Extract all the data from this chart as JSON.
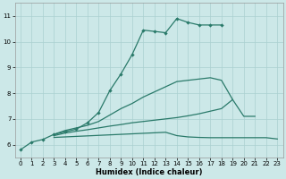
{
  "xlabel": "Humidex (Indice chaleur)",
  "bg_color": "#cce8e8",
  "line_color": "#2a7a6a",
  "grid_color": "#aad0d0",
  "xlim": [
    -0.5,
    23.5
  ],
  "ylim": [
    5.5,
    11.5
  ],
  "xticks": [
    0,
    1,
    2,
    3,
    4,
    5,
    6,
    7,
    8,
    9,
    10,
    11,
    12,
    13,
    14,
    15,
    16,
    17,
    18,
    19,
    20,
    21,
    22,
    23
  ],
  "yticks": [
    6,
    7,
    8,
    9,
    10,
    11
  ],
  "series": [
    {
      "x": [
        0,
        1,
        2,
        3,
        4,
        5,
        6,
        7,
        8,
        9,
        10,
        11,
        12,
        13,
        14,
        15,
        16,
        17,
        18
      ],
      "y": [
        5.8,
        6.1,
        6.2,
        6.4,
        6.5,
        6.6,
        6.85,
        7.25,
        8.1,
        8.75,
        9.5,
        10.45,
        10.4,
        10.35,
        10.9,
        10.75,
        10.65,
        10.65,
        10.65
      ],
      "marker": true
    },
    {
      "x": [
        3,
        4,
        5,
        6,
        7,
        8,
        9,
        10,
        11,
        12,
        13,
        14,
        15,
        16,
        17,
        18,
        19,
        20,
        21,
        22
      ],
      "y": [
        6.4,
        6.55,
        6.65,
        6.75,
        6.9,
        7.15,
        7.4,
        7.6,
        7.85,
        8.05,
        8.25,
        8.45,
        8.5,
        8.55,
        8.6,
        8.5,
        7.75,
        null,
        null,
        null
      ],
      "marker": false
    },
    {
      "x": [
        3,
        4,
        5,
        6,
        7,
        8,
        9,
        10,
        11,
        12,
        13,
        14,
        15,
        16,
        17,
        18,
        19,
        20,
        21,
        22
      ],
      "y": [
        6.35,
        6.45,
        6.52,
        6.58,
        6.65,
        6.72,
        6.78,
        6.85,
        6.9,
        6.95,
        7.0,
        7.05,
        7.12,
        7.2,
        7.3,
        7.4,
        7.75,
        7.1,
        7.1,
        null
      ],
      "marker": false
    },
    {
      "x": [
        3,
        4,
        5,
        6,
        7,
        8,
        9,
        10,
        11,
        12,
        13,
        14,
        15,
        16,
        17,
        18,
        19,
        20,
        21,
        22,
        23
      ],
      "y": [
        6.28,
        6.3,
        6.32,
        6.34,
        6.36,
        6.38,
        6.4,
        6.42,
        6.44,
        6.46,
        6.48,
        6.35,
        6.3,
        6.28,
        6.27,
        6.27,
        6.27,
        6.27,
        6.27,
        6.27,
        6.22
      ],
      "marker": false
    }
  ]
}
